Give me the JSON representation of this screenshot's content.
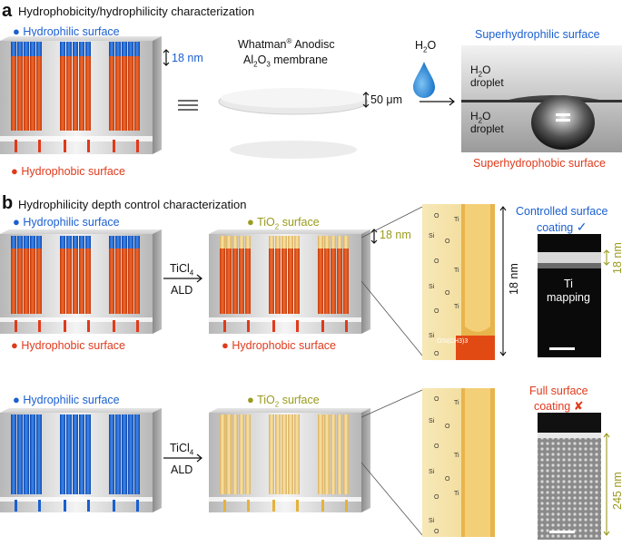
{
  "panel_a": {
    "letter": "a",
    "title": "Hydrophobicity/hydrophilicity characterization",
    "hydrophilic_label": "Hydrophilic surface",
    "hydrophobic_label": "Hydrophobic surface",
    "thickness_18": "18 nm",
    "membrane_brand": "Whatman",
    "membrane_reg": "®",
    "membrane_brand_suffix": " Anodisc",
    "membrane_material": "Al",
    "membrane_material_sub1": "2",
    "membrane_material_mid": "O",
    "membrane_material_sub2": "3",
    "membrane_material_suffix": " membrane",
    "thickness_50": "50 μm",
    "water_H": "H",
    "water_sub": "2",
    "water_O": "O",
    "photo_top_title": "Superhydrophilic surface",
    "photo_bottom_title": "Superhydrophobic surface",
    "droplet_label_line1_H": "H",
    "droplet_label_line1_sub": "2",
    "droplet_label_line1_O": "O",
    "droplet_label_line2": "droplet",
    "colors": {
      "hydrophilic": "#1a5fd0",
      "hydrophobic": "#e03a1c",
      "tio2": "#9a9a1e"
    }
  },
  "panel_b": {
    "letter": "b",
    "title": "Hydrophilicity depth control characterization",
    "row1": {
      "hydrophilic_label": "Hydrophilic surface",
      "hydrophobic_label_left": "Hydrophobic surface",
      "tio2_label_Ti": "TiO",
      "tio2_label_sub": "2",
      "tio2_label_suffix": " surface",
      "hydrophobic_label_right": "Hydrophobic surface",
      "thickness_18": "18 nm",
      "reagent_Ti": "TiCl",
      "reagent_sub": "4",
      "process": "ALD",
      "depth_label": "18 nm",
      "result_line1": "Controlled surface",
      "result_line2": "coating",
      "result_mark": "✓",
      "tem_label_line1": "Ti",
      "tem_label_line2": "mapping",
      "tem_depth": "18 nm",
      "chem_label": "OSi(CH3)3"
    },
    "row2": {
      "hydrophilic_label": "Hydrophilic surface",
      "tio2_label_Ti": "TiO",
      "tio2_label_sub": "2",
      "tio2_label_suffix": " surface",
      "reagent_Ti": "TiCl",
      "reagent_sub": "4",
      "process": "ALD",
      "result_line1": "Full surface",
      "result_line2": "coating",
      "result_mark": "✘",
      "tem_depth": "245 nm"
    },
    "chem_atoms": {
      "O": "O",
      "Si": "Si",
      "Ti": "Ti"
    }
  }
}
